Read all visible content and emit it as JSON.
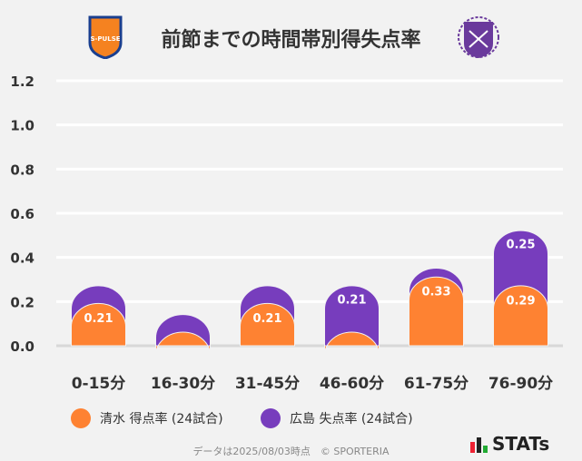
{
  "title": "前節までの時間帯別得失点率",
  "logos": {
    "home": "S-PULSE",
    "away": "SANFRECCE"
  },
  "chart_data": {
    "type": "bar",
    "stacked": true,
    "categories": [
      "0-15分",
      "16-30分",
      "31-45分",
      "46-60分",
      "61-75分",
      "76-90分"
    ],
    "series": [
      {
        "name": "清水 得点率 (24試合)",
        "color": "#fe8232",
        "values": [
          0.21,
          0.08,
          0.21,
          0.08,
          0.33,
          0.29
        ],
        "labels": [
          "0.21",
          "",
          "0.21",
          "",
          "0.33",
          "0.29"
        ]
      },
      {
        "name": "広島 失点率 (24試合)",
        "color": "#773dbd",
        "values": [
          0.08,
          0.08,
          0.08,
          0.21,
          0.04,
          0.25
        ],
        "labels": [
          "",
          "",
          "",
          "0.21",
          "",
          "0.25"
        ]
      }
    ],
    "ylim": [
      0,
      1.2
    ],
    "yticks": [
      "0.0",
      "0.2",
      "0.4",
      "0.6",
      "0.8",
      "1.0",
      "1.2"
    ],
    "grid": true,
    "legend": "bottom"
  },
  "footer": "データは2025/08/03時点　© SPORTERIA",
  "brand": "STATs"
}
